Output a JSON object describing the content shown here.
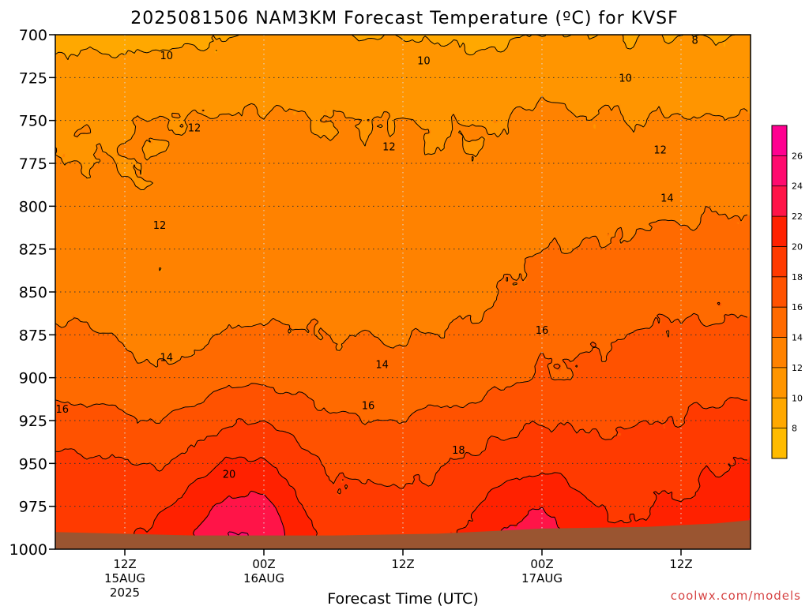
{
  "chart_data": {
    "type": "heatmap",
    "title": "2025081506 NAM3KM Forecast Temperature (ºC) for KVSF",
    "xlabel": "Forecast Time (UTC)",
    "ylabel": "",
    "credit": "coolwx.com/models",
    "x_axis": {
      "range_hours": [
        -10,
        90
      ],
      "ticks": [
        {
          "hour": 0,
          "lines": [
            "12Z",
            "15AUG",
            "2025"
          ]
        },
        {
          "hour": 20,
          "lines": [
            "00Z",
            "16AUG"
          ]
        },
        {
          "hour": 40,
          "lines": [
            "12Z"
          ]
        },
        {
          "hour": 60,
          "lines": [
            "00Z",
            "17AUG"
          ]
        },
        {
          "hour": 80,
          "lines": [
            "12Z"
          ]
        }
      ]
    },
    "y_axis": {
      "range": [
        700,
        1000
      ],
      "inverted": true,
      "ticks": [
        700,
        725,
        750,
        775,
        800,
        825,
        850,
        875,
        900,
        925,
        950,
        975,
        1000
      ]
    },
    "grid": true,
    "colorbar": {
      "position": "right",
      "levels": [
        6,
        8,
        10,
        12,
        14,
        16,
        18,
        20,
        22,
        24,
        26,
        28
      ],
      "labels": [
        8,
        10,
        12,
        14,
        16,
        18,
        20,
        22,
        24,
        26
      ],
      "colors": [
        "#ffbb00",
        "#ffa800",
        "#ff9500",
        "#ff8200",
        "#ff6a00",
        "#ff5200",
        "#ff3a00",
        "#ff2100",
        "#ff1448",
        "#ff0a6e",
        "#ff0090"
      ]
    },
    "surface_pressure": [
      [
        -10,
        990
      ],
      [
        10,
        992
      ],
      [
        30,
        992
      ],
      [
        45,
        991
      ],
      [
        60,
        988
      ],
      [
        75,
        987
      ],
      [
        85,
        985
      ],
      [
        90,
        983
      ]
    ],
    "profiles": [
      {
        "hour": -10,
        "t": [
          [
            700,
            9.6
          ],
          [
            750,
            11.6
          ],
          [
            800,
            12.6
          ],
          [
            850,
            13.4
          ],
          [
            900,
            15.2
          ],
          [
            950,
            18.4
          ],
          [
            990,
            19.0
          ]
        ]
      },
      {
        "hour": 0,
        "t": [
          [
            700,
            9.4
          ],
          [
            750,
            11.8
          ],
          [
            800,
            12.2
          ],
          [
            850,
            13.2
          ],
          [
            900,
            14.6
          ],
          [
            950,
            18.0
          ],
          [
            990,
            19.5
          ]
        ]
      },
      {
        "hour": 5,
        "t": [
          [
            700,
            9.6
          ],
          [
            750,
            12.0
          ],
          [
            800,
            12.4
          ],
          [
            850,
            12.0
          ],
          [
            900,
            14.2
          ],
          [
            950,
            17.8
          ],
          [
            990,
            20.6
          ]
        ]
      },
      {
        "hour": 10,
        "t": [
          [
            700,
            9.7
          ],
          [
            750,
            12.1
          ],
          [
            800,
            12.8
          ],
          [
            850,
            12.9
          ],
          [
            900,
            14.8
          ],
          [
            950,
            19.0
          ],
          [
            990,
            22.2
          ]
        ]
      },
      {
        "hour": 15,
        "t": [
          [
            700,
            9.9
          ],
          [
            750,
            12.2
          ],
          [
            800,
            13.4
          ],
          [
            850,
            13.1
          ],
          [
            900,
            15.4
          ],
          [
            950,
            20.2
          ],
          [
            990,
            24.2
          ]
        ]
      },
      {
        "hour": 20,
        "t": [
          [
            700,
            10.3
          ],
          [
            750,
            12.3
          ],
          [
            800,
            13.2
          ],
          [
            850,
            13.2
          ],
          [
            900,
            15.5
          ],
          [
            950,
            20.4
          ],
          [
            990,
            24.0
          ]
        ]
      },
      {
        "hour": 25,
        "t": [
          [
            700,
            10.1
          ],
          [
            750,
            12.2
          ],
          [
            800,
            12.6
          ],
          [
            850,
            13.2
          ],
          [
            900,
            15.4
          ],
          [
            950,
            18.9
          ],
          [
            990,
            20.9
          ]
        ]
      },
      {
        "hour": 30,
        "t": [
          [
            700,
            10.1
          ],
          [
            750,
            12.1
          ],
          [
            800,
            12.7
          ],
          [
            850,
            13.1
          ],
          [
            900,
            14.7
          ],
          [
            950,
            17.6
          ],
          [
            990,
            19.1
          ]
        ]
      },
      {
        "hour": 40,
        "t": [
          [
            700,
            10.0
          ],
          [
            750,
            12.0
          ],
          [
            800,
            12.7
          ],
          [
            850,
            13.0
          ],
          [
            900,
            14.8
          ],
          [
            950,
            17.4
          ],
          [
            990,
            18.6
          ]
        ]
      },
      {
        "hour": 50,
        "t": [
          [
            700,
            9.6
          ],
          [
            750,
            11.8
          ],
          [
            800,
            12.6
          ],
          [
            850,
            13.4
          ],
          [
            900,
            15.2
          ],
          [
            950,
            18.4
          ],
          [
            990,
            20.4
          ]
        ]
      },
      {
        "hour": 55,
        "t": [
          [
            700,
            9.8
          ],
          [
            750,
            12.1
          ],
          [
            800,
            12.8
          ],
          [
            850,
            14.1
          ],
          [
            900,
            15.8
          ],
          [
            950,
            19.2
          ],
          [
            990,
            22.2
          ]
        ]
      },
      {
        "hour": 60,
        "t": [
          [
            700,
            10.1
          ],
          [
            750,
            12.4
          ],
          [
            800,
            13.1
          ],
          [
            850,
            14.8
          ],
          [
            900,
            16.2
          ],
          [
            950,
            19.6
          ],
          [
            990,
            23.2
          ]
        ]
      },
      {
        "hour": 65,
        "t": [
          [
            700,
            10.1
          ],
          [
            750,
            12.3
          ],
          [
            800,
            13.1
          ],
          [
            850,
            14.8
          ],
          [
            900,
            16.1
          ],
          [
            950,
            19.1
          ],
          [
            990,
            21.4
          ]
        ]
      },
      {
        "hour": 70,
        "t": [
          [
            700,
            9.9
          ],
          [
            750,
            12.1
          ],
          [
            800,
            13.4
          ],
          [
            850,
            15.2
          ],
          [
            900,
            16.5
          ],
          [
            950,
            18.8
          ],
          [
            990,
            20.1
          ]
        ]
      },
      {
        "hour": 80,
        "t": [
          [
            700,
            9.9
          ],
          [
            750,
            12.1
          ],
          [
            800,
            13.6
          ],
          [
            850,
            15.6
          ],
          [
            900,
            16.9
          ],
          [
            950,
            19.3
          ],
          [
            990,
            20.7
          ]
        ]
      },
      {
        "hour": 90,
        "t": [
          [
            700,
            10.0
          ],
          [
            750,
            12.1
          ],
          [
            800,
            13.8
          ],
          [
            850,
            15.6
          ],
          [
            900,
            17.1
          ],
          [
            950,
            20.2
          ],
          [
            990,
            22.6
          ]
        ]
      }
    ],
    "contour_labels": [
      {
        "text": "8",
        "hour": 82,
        "p": 703
      },
      {
        "text": "10",
        "hour": 6,
        "p": 712
      },
      {
        "text": "10",
        "hour": 43,
        "p": 715
      },
      {
        "text": "10",
        "hour": 72,
        "p": 725
      },
      {
        "text": "12",
        "hour": 10,
        "p": 754
      },
      {
        "text": "12",
        "hour": 38,
        "p": 765
      },
      {
        "text": "12",
        "hour": 77,
        "p": 767
      },
      {
        "text": "12",
        "hour": 5,
        "p": 811
      },
      {
        "text": "14",
        "hour": 78,
        "p": 795
      },
      {
        "text": "14",
        "hour": 6,
        "p": 888
      },
      {
        "text": "14",
        "hour": 37,
        "p": 892
      },
      {
        "text": "16",
        "hour": 60,
        "p": 872
      },
      {
        "text": "16",
        "hour": -9,
        "p": 918
      },
      {
        "text": "16",
        "hour": 35,
        "p": 916
      },
      {
        "text": "18",
        "hour": 48,
        "p": 942
      },
      {
        "text": "20",
        "hour": 15,
        "p": 956
      }
    ]
  }
}
